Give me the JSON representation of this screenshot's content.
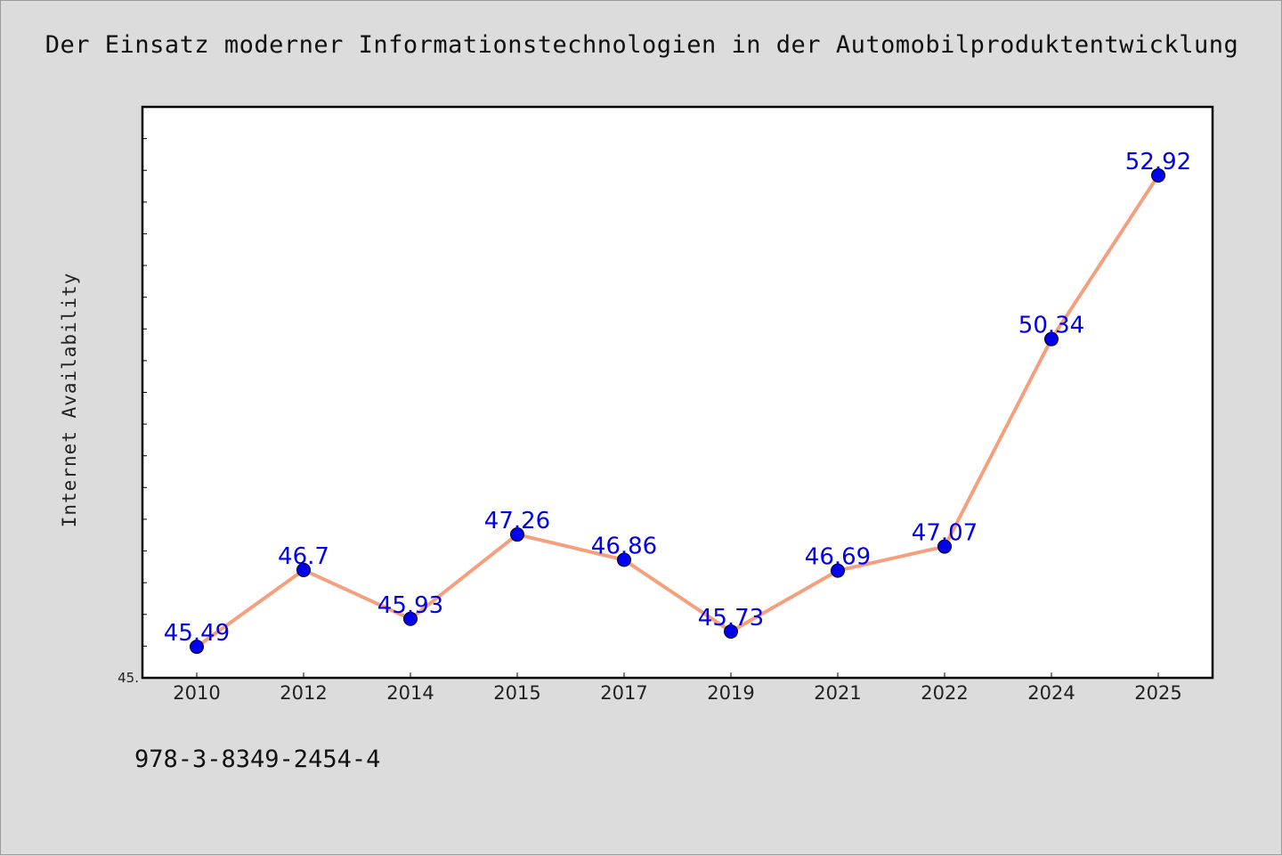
{
  "chart_data": {
    "type": "line",
    "title": "Der Einsatz moderner Informationstechnologien in der Automobilproduktentwicklung",
    "xlabel": "",
    "ylabel": "Internet Availability",
    "categories": [
      "2010",
      "2012",
      "2014",
      "2015",
      "2017",
      "2019",
      "2021",
      "2022",
      "2024",
      "2025"
    ],
    "series": [
      {
        "values": [
          45.49,
          46.7,
          45.93,
          47.26,
          46.86,
          45.73,
          46.69,
          47.07,
          50.34,
          52.92
        ],
        "labels": [
          "45.49",
          "46.7",
          "45.93",
          "47.26",
          "46.86",
          "45.73",
          "46.69",
          "47.07",
          "50.34",
          "52.92"
        ]
      }
    ],
    "ylim": [
      45.0,
      54.0
    ],
    "y_tick_labels": [
      {
        "value": 45.0,
        "label": "45."
      }
    ],
    "grid": false,
    "line_color": "#f4a07e",
    "marker_color": "#0000ee",
    "label_color": "#0000ee"
  },
  "footer": {
    "isbn": "978-3-8349-2454-4"
  }
}
